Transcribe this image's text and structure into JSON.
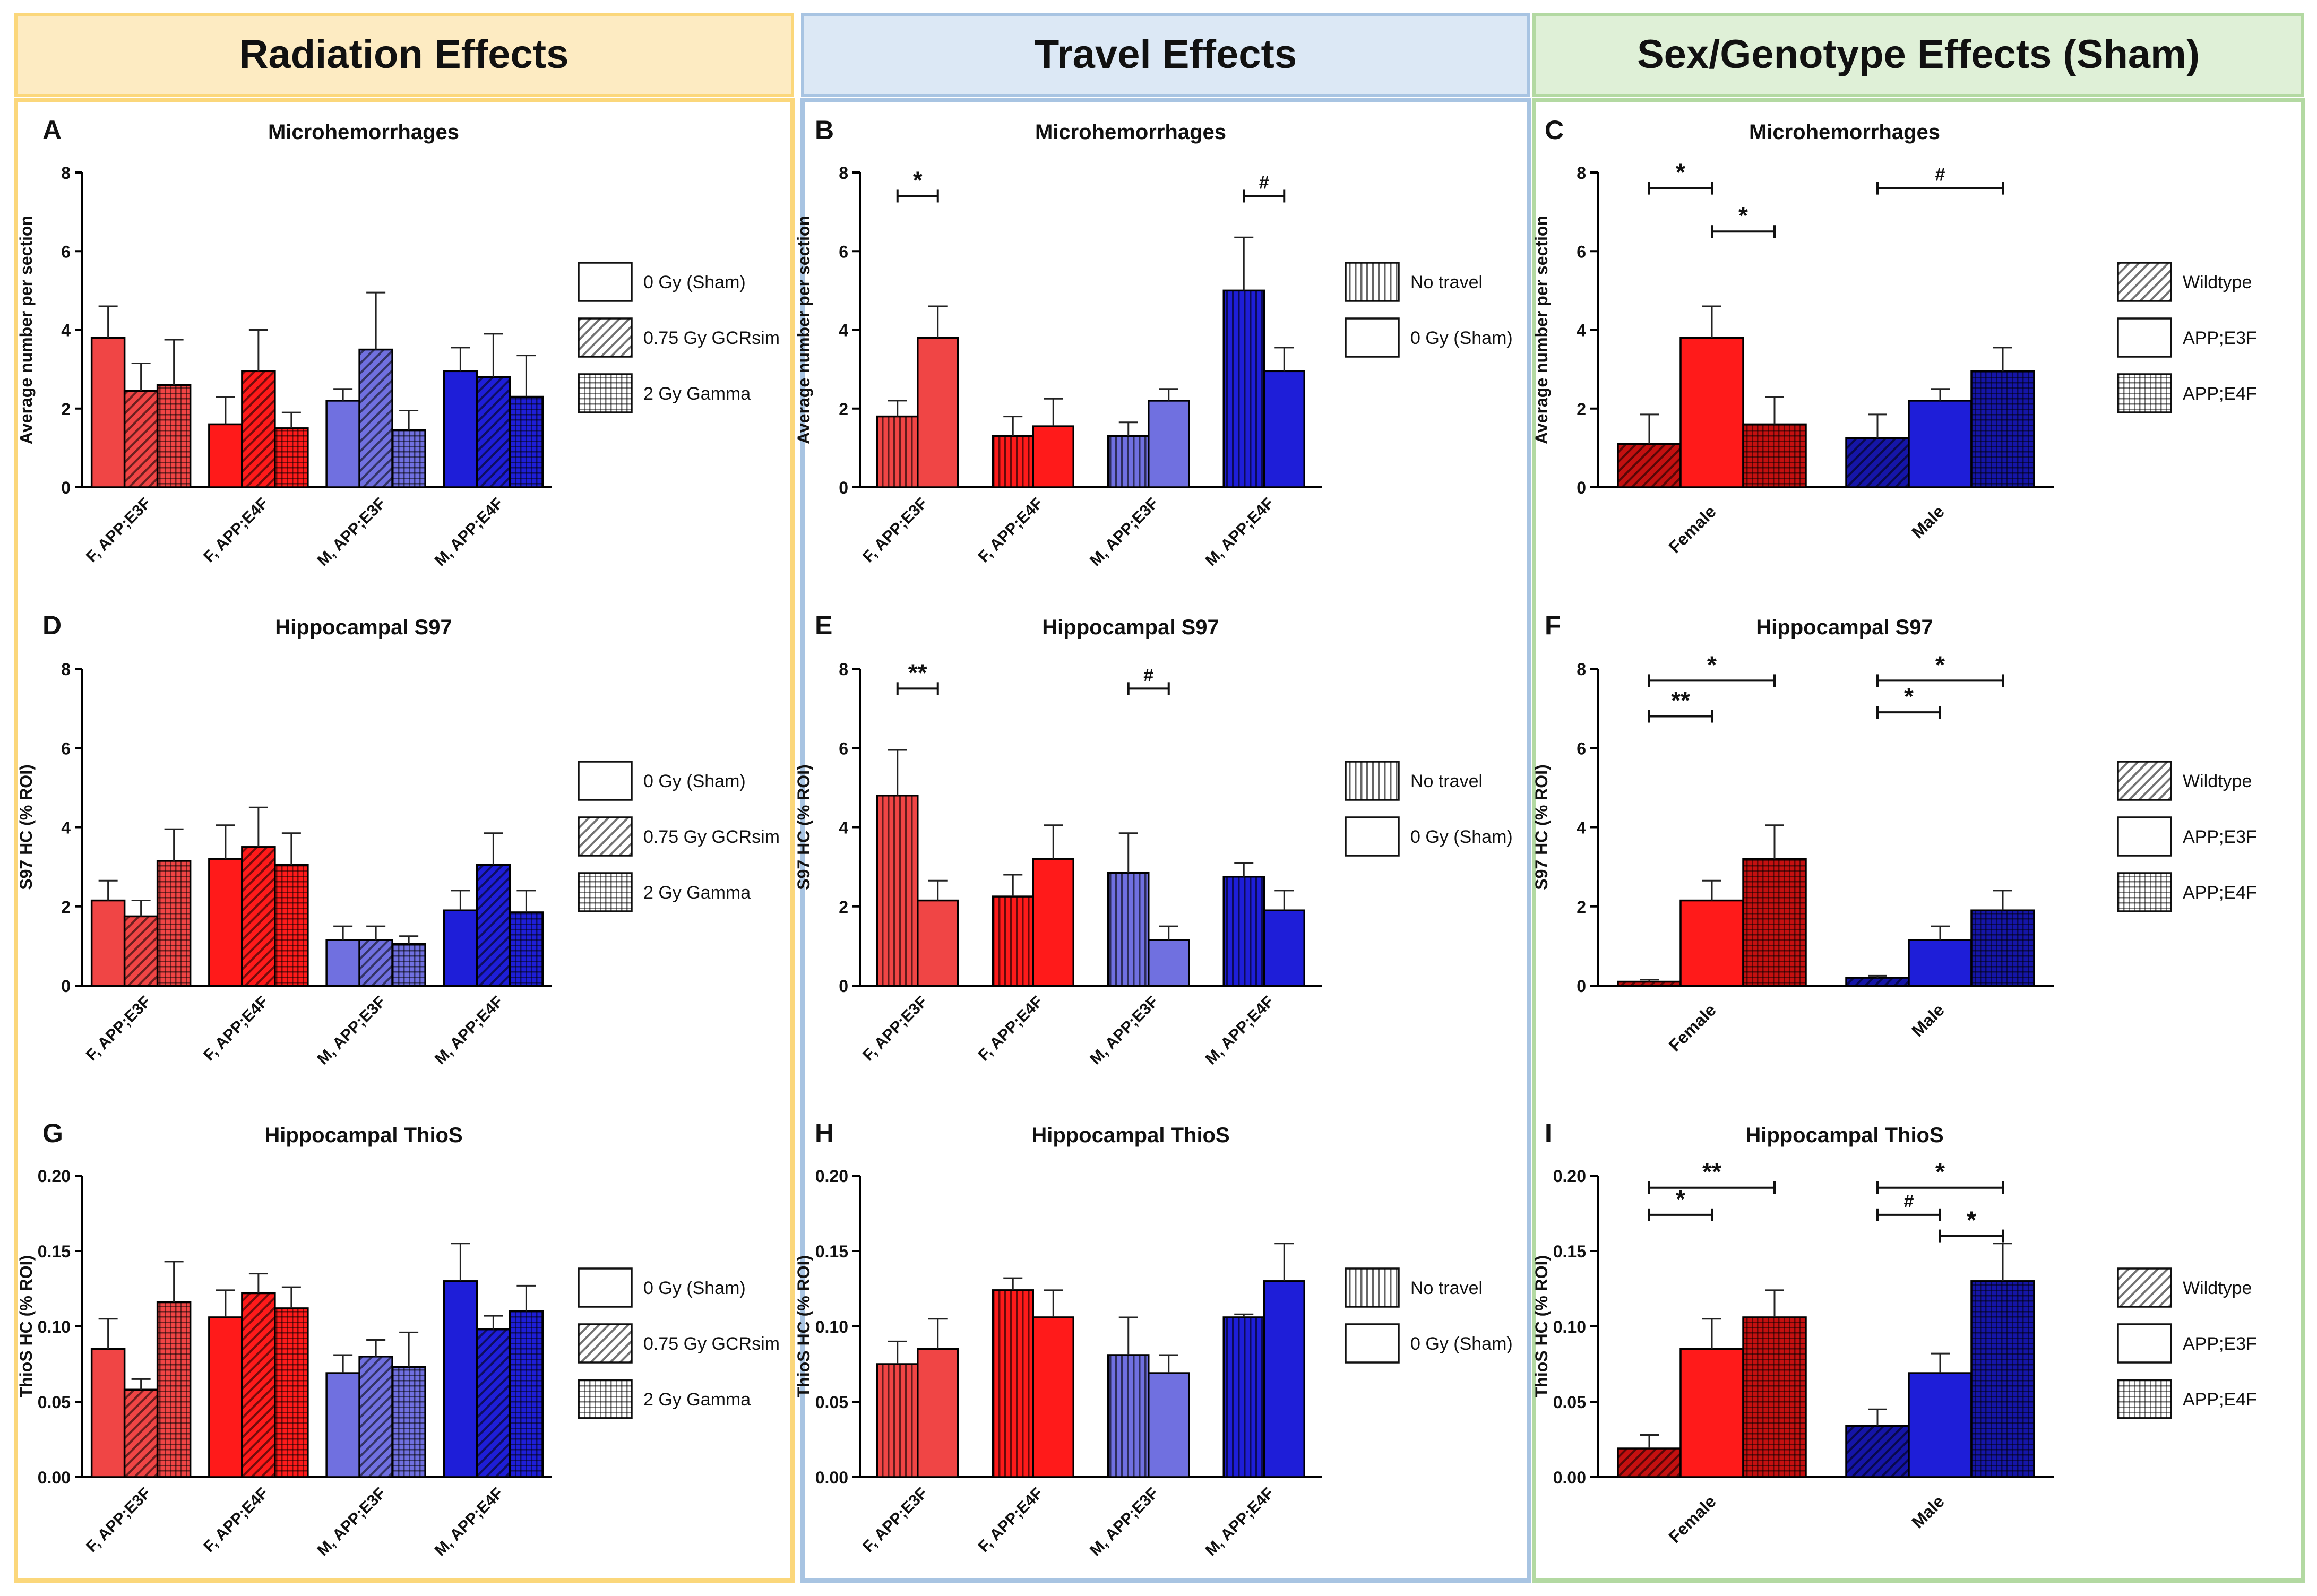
{
  "columns": [
    {
      "title": "Radiation Effects",
      "bg": "#fdebc2",
      "border": "#fbd77b"
    },
    {
      "title": "Travel Effects",
      "bg": "#dce8f5",
      "border": "#a8c4e2"
    },
    {
      "title": "Sex/Genotype Effects (Sham)",
      "bg": "#dff0d7",
      "border": "#b3d9a2"
    }
  ],
  "colors": {
    "red_dark": "#c41010",
    "red": "#ff1a1a",
    "red_light": "#f04545",
    "blue_dark": "#1515a8",
    "blue": "#1e1ed8",
    "blue_light": "#7070e0"
  },
  "legends": {
    "radiation": [
      {
        "label": "0 Gy (Sham)",
        "pattern": "solid"
      },
      {
        "label": "0.75 Gy GCRsim",
        "pattern": "diag"
      },
      {
        "label": "2 Gy Gamma",
        "pattern": "grid"
      }
    ],
    "travel": [
      {
        "label": "No travel",
        "pattern": "vert"
      },
      {
        "label": "0 Gy (Sham)",
        "pattern": "solid"
      }
    ],
    "sexgen": [
      {
        "label": "Wildtype",
        "pattern": "diag"
      },
      {
        "label": "APP;E3F",
        "pattern": "solid"
      },
      {
        "label": "APP;E4F",
        "pattern": "grid"
      }
    ]
  },
  "chart_data": [
    {
      "panel": "A",
      "type": "bar",
      "title": "Microhemorrhages",
      "ylabel": "Average number per section",
      "ylim": [
        0,
        8
      ],
      "yticks": [
        "0",
        "2",
        "4",
        "6",
        "8"
      ],
      "categories": [
        "F, APP;E3F",
        "F, APP;E4F",
        "M, APP;E3F",
        "M, APP;E4F"
      ],
      "series": [
        {
          "name": "0 Gy (Sham)",
          "values": [
            3.8,
            1.6,
            2.2,
            2.95
          ],
          "errors": [
            0.8,
            0.7,
            0.3,
            0.6
          ]
        },
        {
          "name": "0.75 Gy GCRsim",
          "values": [
            2.45,
            2.95,
            3.5,
            2.8
          ],
          "errors": [
            0.7,
            1.05,
            1.45,
            1.1
          ]
        },
        {
          "name": "2 Gy Gamma",
          "values": [
            2.6,
            1.5,
            1.45,
            2.3
          ],
          "errors": [
            1.15,
            0.4,
            0.5,
            1.05
          ]
        }
      ],
      "legend": "radiation",
      "annotations": []
    },
    {
      "panel": "B",
      "type": "bar",
      "title": "Microhemorrhages",
      "ylabel": "Average number per section",
      "ylim": [
        0,
        8
      ],
      "yticks": [
        "0",
        "2",
        "4",
        "6",
        "8"
      ],
      "categories": [
        "F, APP;E3F",
        "F, APP;E4F",
        "M, APP;E3F",
        "M, APP;E4F"
      ],
      "series": [
        {
          "name": "No travel",
          "values": [
            1.8,
            1.3,
            1.3,
            5.0
          ],
          "errors": [
            0.4,
            0.5,
            0.35,
            1.35
          ]
        },
        {
          "name": "0 Gy (Sham)",
          "values": [
            3.8,
            1.55,
            2.2,
            2.95
          ],
          "errors": [
            0.8,
            0.7,
            0.3,
            0.6
          ]
        }
      ],
      "legend": "travel",
      "annotations": [
        {
          "label": "*",
          "from": 0,
          "to": 1,
          "y": 7.4
        },
        {
          "label": "#",
          "from": 6,
          "to": 7,
          "y": 7.4
        }
      ]
    },
    {
      "panel": "C",
      "type": "bar",
      "title": "Microhemorrhages",
      "ylabel": "Average number per section",
      "ylim": [
        0,
        8
      ],
      "yticks": [
        "0",
        "2",
        "4",
        "6",
        "8"
      ],
      "categories": [
        "Female",
        "Male"
      ],
      "series": [
        {
          "name": "Wildtype",
          "values": [
            1.1,
            1.25
          ],
          "errors": [
            0.75,
            0.6
          ]
        },
        {
          "name": "APP;E3F",
          "values": [
            3.8,
            2.2
          ],
          "errors": [
            0.8,
            0.3
          ]
        },
        {
          "name": "APP;E4F",
          "values": [
            1.6,
            2.95
          ],
          "errors": [
            0.7,
            0.6
          ]
        }
      ],
      "legend": "sexgen",
      "annotations": [
        {
          "label": "*",
          "from": 0,
          "to": 1,
          "y": 7.6
        },
        {
          "label": "*",
          "from": 1,
          "to": 2,
          "y": 6.5
        },
        {
          "label": "#",
          "from": 3,
          "to": 5,
          "y": 7.6
        }
      ]
    },
    {
      "panel": "D",
      "type": "bar",
      "title": "Hippocampal S97",
      "ylabel": "S97 HC (% ROI)",
      "ylim": [
        0,
        8
      ],
      "yticks": [
        "0",
        "2",
        "4",
        "6",
        "8"
      ],
      "categories": [
        "F, APP;E3F",
        "F, APP;E4F",
        "M, APP;E3F",
        "M, APP;E4F"
      ],
      "series": [
        {
          "name": "0 Gy (Sham)",
          "values": [
            2.15,
            3.2,
            1.15,
            1.9
          ],
          "errors": [
            0.5,
            0.85,
            0.35,
            0.5
          ]
        },
        {
          "name": "0.75 Gy GCRsim",
          "values": [
            1.75,
            3.5,
            1.15,
            3.05
          ],
          "errors": [
            0.4,
            1.0,
            0.35,
            0.8
          ]
        },
        {
          "name": "2 Gy Gamma",
          "values": [
            3.15,
            3.05,
            1.05,
            1.85
          ],
          "errors": [
            0.8,
            0.8,
            0.2,
            0.55
          ]
        }
      ],
      "legend": "radiation",
      "annotations": []
    },
    {
      "panel": "E",
      "type": "bar",
      "title": "Hippocampal S97",
      "ylabel": "S97 HC (% ROI)",
      "ylim": [
        0,
        8
      ],
      "yticks": [
        "0",
        "2",
        "4",
        "6",
        "8"
      ],
      "categories": [
        "F, APP;E3F",
        "F, APP;E4F",
        "M, APP;E3F",
        "M, APP;E4F"
      ],
      "series": [
        {
          "name": "No travel",
          "values": [
            4.8,
            2.25,
            2.85,
            2.75
          ],
          "errors": [
            1.15,
            0.55,
            1.0,
            0.35
          ]
        },
        {
          "name": "0 Gy (Sham)",
          "values": [
            2.15,
            3.2,
            1.15,
            1.9
          ],
          "errors": [
            0.5,
            0.85,
            0.35,
            0.5
          ]
        }
      ],
      "legend": "travel",
      "annotations": [
        {
          "label": "**",
          "from": 0,
          "to": 1,
          "y": 7.5
        },
        {
          "label": "#",
          "from": 4,
          "to": 5,
          "y": 7.5
        }
      ]
    },
    {
      "panel": "F",
      "type": "bar",
      "title": "Hippocampal S97",
      "ylabel": "S97 HC (% ROI)",
      "ylim": [
        0,
        8
      ],
      "yticks": [
        "0",
        "2",
        "4",
        "6",
        "8"
      ],
      "categories": [
        "Female",
        "Male"
      ],
      "series": [
        {
          "name": "Wildtype",
          "values": [
            0.1,
            0.2
          ],
          "errors": [
            0.05,
            0.05
          ]
        },
        {
          "name": "APP;E3F",
          "values": [
            2.15,
            1.15
          ],
          "errors": [
            0.5,
            0.35
          ]
        },
        {
          "name": "APP;E4F",
          "values": [
            3.2,
            1.9
          ],
          "errors": [
            0.85,
            0.5
          ]
        }
      ],
      "legend": "sexgen",
      "annotations": [
        {
          "label": "*",
          "from": 0,
          "to": 2,
          "y": 7.7
        },
        {
          "label": "**",
          "from": 0,
          "to": 1,
          "y": 6.8
        },
        {
          "label": "*",
          "from": 3,
          "to": 5,
          "y": 7.7
        },
        {
          "label": "*",
          "from": 3,
          "to": 4,
          "y": 6.9
        }
      ]
    },
    {
      "panel": "G",
      "type": "bar",
      "title": "Hippocampal ThioS",
      "ylabel": "ThioS HC (% ROI)",
      "ylim": [
        0,
        0.2
      ],
      "yticks": [
        "0.00",
        "0.05",
        "0.10",
        "0.15",
        "0.20"
      ],
      "categories": [
        "F, APP;E3F",
        "F, APP;E4F",
        "M, APP;E3F",
        "M, APP;E4F"
      ],
      "series": [
        {
          "name": "0 Gy (Sham)",
          "values": [
            0.085,
            0.106,
            0.069,
            0.13
          ],
          "errors": [
            0.02,
            0.018,
            0.012,
            0.025
          ]
        },
        {
          "name": "0.75 Gy GCRsim",
          "values": [
            0.058,
            0.122,
            0.08,
            0.098
          ],
          "errors": [
            0.007,
            0.013,
            0.011,
            0.009
          ]
        },
        {
          "name": "2 Gy Gamma",
          "values": [
            0.116,
            0.112,
            0.073,
            0.11
          ],
          "errors": [
            0.027,
            0.014,
            0.023,
            0.017
          ]
        }
      ],
      "legend": "radiation",
      "annotations": []
    },
    {
      "panel": "H",
      "type": "bar",
      "title": "Hippocampal ThioS",
      "ylabel": "ThioS HC (% ROI)",
      "ylim": [
        0,
        0.2
      ],
      "yticks": [
        "0.00",
        "0.05",
        "0.10",
        "0.15",
        "0.20"
      ],
      "categories": [
        "F, APP;E3F",
        "F, APP;E4F",
        "M, APP;E3F",
        "M, APP;E4F"
      ],
      "series": [
        {
          "name": "No travel",
          "values": [
            0.075,
            0.124,
            0.081,
            0.106
          ],
          "errors": [
            0.015,
            0.008,
            0.025,
            0.002
          ]
        },
        {
          "name": "0 Gy (Sham)",
          "values": [
            0.085,
            0.106,
            0.069,
            0.13
          ],
          "errors": [
            0.02,
            0.018,
            0.012,
            0.025
          ]
        }
      ],
      "legend": "travel",
      "annotations": []
    },
    {
      "panel": "I",
      "type": "bar",
      "title": "Hippocampal ThioS",
      "ylabel": "ThioS HC (% ROI)",
      "ylim": [
        0,
        0.2
      ],
      "yticks": [
        "0.00",
        "0.05",
        "0.10",
        "0.15",
        "0.20"
      ],
      "categories": [
        "Female",
        "Male"
      ],
      "series": [
        {
          "name": "Wildtype",
          "values": [
            0.019,
            0.034
          ],
          "errors": [
            0.009,
            0.011
          ]
        },
        {
          "name": "APP;E3F",
          "values": [
            0.085,
            0.069
          ],
          "errors": [
            0.02,
            0.013
          ]
        },
        {
          "name": "APP;E4F",
          "values": [
            0.106,
            0.13
          ],
          "errors": [
            0.018,
            0.025
          ]
        }
      ],
      "legend": "sexgen",
      "annotations": [
        {
          "label": "**",
          "from": 0,
          "to": 2,
          "y": 0.192
        },
        {
          "label": "*",
          "from": 0,
          "to": 1,
          "y": 0.174
        },
        {
          "label": "*",
          "from": 3,
          "to": 5,
          "y": 0.192
        },
        {
          "label": "#",
          "from": 3,
          "to": 4,
          "y": 0.174
        },
        {
          "label": "*",
          "from": 4,
          "to": 5,
          "y": 0.16
        }
      ]
    }
  ]
}
